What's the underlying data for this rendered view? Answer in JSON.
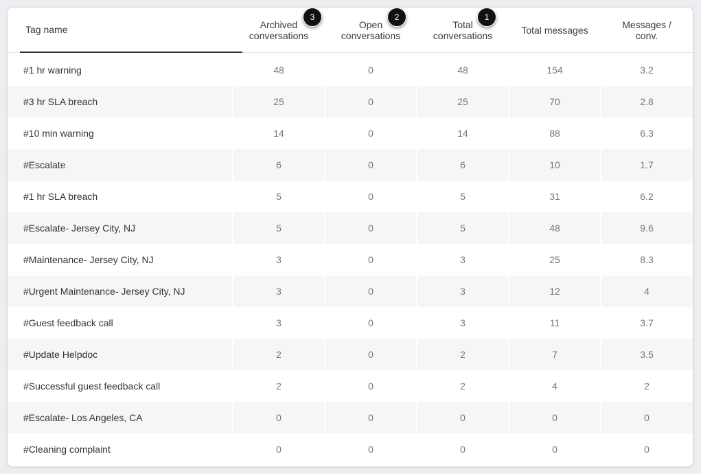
{
  "table": {
    "columns": [
      {
        "key": "tag",
        "label": "Tag name"
      },
      {
        "key": "archived",
        "label": "Archived\nconversations"
      },
      {
        "key": "open",
        "label": "Open\nconversations"
      },
      {
        "key": "total",
        "label": "Total\nconversations"
      },
      {
        "key": "messages",
        "label": "Total messages"
      },
      {
        "key": "per_conv",
        "label": "Messages /\nconv."
      }
    ],
    "badges": {
      "archived": "3",
      "open": "2",
      "total": "1"
    },
    "rows": [
      {
        "tag": "#1 hr warning",
        "archived": "48",
        "open": "0",
        "total": "48",
        "messages": "154",
        "per_conv": "3.2"
      },
      {
        "tag": "#3 hr SLA breach",
        "archived": "25",
        "open": "0",
        "total": "25",
        "messages": "70",
        "per_conv": "2.8"
      },
      {
        "tag": "#10 min warning",
        "archived": "14",
        "open": "0",
        "total": "14",
        "messages": "88",
        "per_conv": "6.3"
      },
      {
        "tag": "#Escalate",
        "archived": "6",
        "open": "0",
        "total": "6",
        "messages": "10",
        "per_conv": "1.7"
      },
      {
        "tag": "#1 hr SLA breach",
        "archived": "5",
        "open": "0",
        "total": "5",
        "messages": "31",
        "per_conv": "6.2"
      },
      {
        "tag": "#Escalate- Jersey City, NJ",
        "archived": "5",
        "open": "0",
        "total": "5",
        "messages": "48",
        "per_conv": "9.6"
      },
      {
        "tag": "#Maintenance- Jersey City, NJ",
        "archived": "3",
        "open": "0",
        "total": "3",
        "messages": "25",
        "per_conv": "8.3"
      },
      {
        "tag": "#Urgent Maintenance- Jersey City, NJ",
        "archived": "3",
        "open": "0",
        "total": "3",
        "messages": "12",
        "per_conv": "4"
      },
      {
        "tag": "#Guest feedback call",
        "archived": "3",
        "open": "0",
        "total": "3",
        "messages": "11",
        "per_conv": "3.7"
      },
      {
        "tag": "#Update Helpdoc",
        "archived": "2",
        "open": "0",
        "total": "2",
        "messages": "7",
        "per_conv": "3.5"
      },
      {
        "tag": "#Successful guest feedback call",
        "archived": "2",
        "open": "0",
        "total": "2",
        "messages": "4",
        "per_conv": "2"
      },
      {
        "tag": "#Escalate- Los Angeles, CA",
        "archived": "0",
        "open": "0",
        "total": "0",
        "messages": "0",
        "per_conv": "0"
      },
      {
        "tag": "#Cleaning complaint",
        "archived": "0",
        "open": "0",
        "total": "0",
        "messages": "0",
        "per_conv": "0"
      }
    ]
  }
}
